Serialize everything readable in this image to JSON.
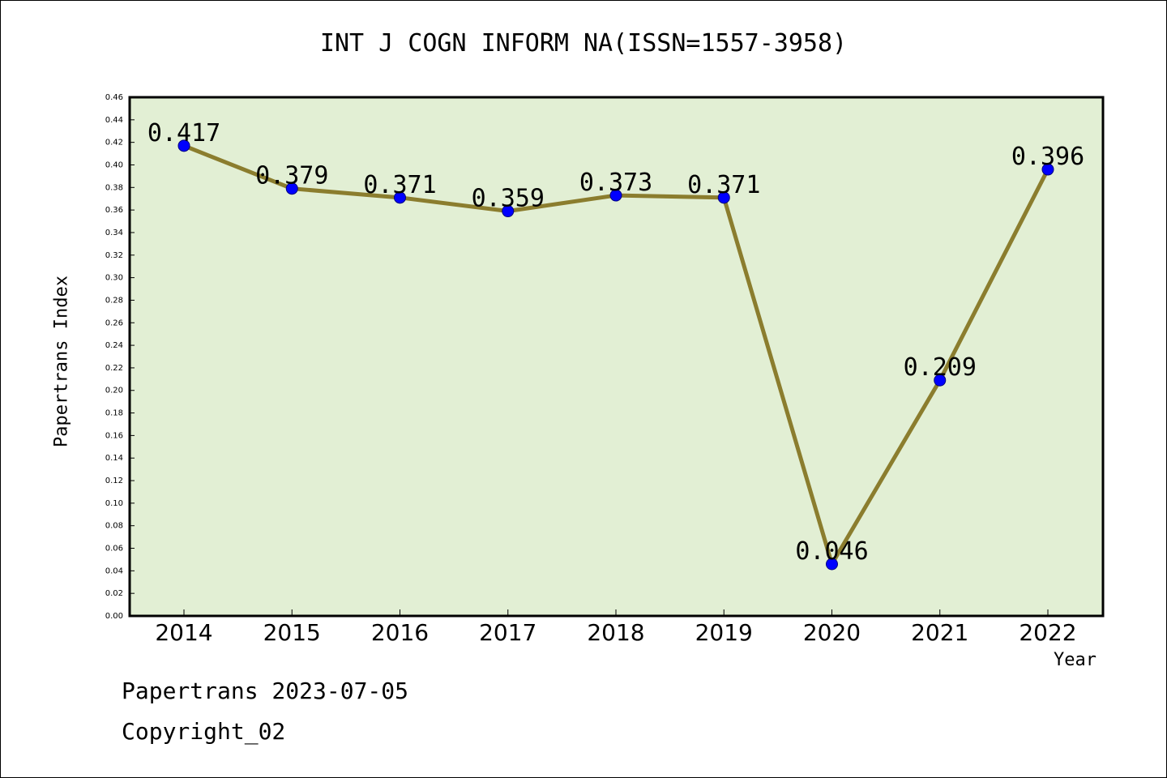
{
  "chart_data": {
    "type": "line",
    "title": "INT J COGN INFORM NA(ISSN=1557-3958)",
    "xlabel": "Year",
    "ylabel": "Papertrans Index",
    "categories": [
      "2014",
      "2015",
      "2016",
      "2017",
      "2018",
      "2019",
      "2020",
      "2021",
      "2022"
    ],
    "series": [
      {
        "values": [
          0.417,
          0.379,
          0.371,
          0.359,
          0.373,
          0.371,
          0.046,
          0.209,
          0.396
        ],
        "data_labels": [
          "0.417",
          "0.379",
          "0.371",
          "0.359",
          "0.373",
          "0.371",
          "0.046",
          "0.209",
          "0.396"
        ]
      }
    ],
    "ylim": [
      0,
      0.46
    ],
    "ytick_step": 0.02,
    "grid": false,
    "colors": {
      "plot_background": "#e2efd4",
      "line": "#8b7d2e",
      "marker": "#0000ff",
      "marker_edge": "#000080"
    }
  },
  "footer": {
    "date_line": "Papertrans 2023-07-05",
    "copyright": "Copyright_02"
  }
}
